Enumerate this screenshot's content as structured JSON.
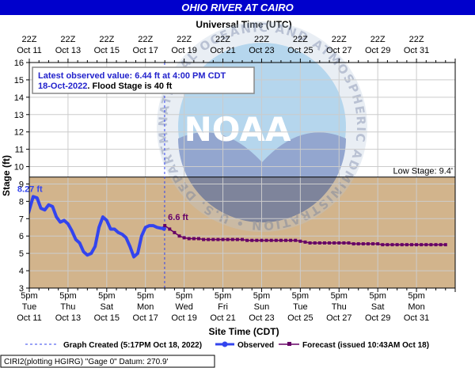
{
  "chart_data": {
    "type": "line",
    "title": "OHIO RIVER AT CAIRO",
    "top_axis_title": "Universal Time (UTC)",
    "xlabel": "Site Time (CDT)",
    "ylabel": "Stage (ft)",
    "ylim": [
      3,
      16
    ],
    "y_ticks": [
      3,
      4,
      5,
      6,
      7,
      8,
      9,
      10,
      11,
      12,
      13,
      14,
      15,
      16
    ],
    "x_range_days": [
      0,
      22
    ],
    "bottom_ticks": [
      {
        "day": 0,
        "l1": "5pm",
        "l2": "Tue",
        "l3": "Oct 11"
      },
      {
        "day": 2,
        "l1": "5pm",
        "l2": "Thu",
        "l3": "Oct 13"
      },
      {
        "day": 4,
        "l1": "5pm",
        "l2": "Sat",
        "l3": "Oct 15"
      },
      {
        "day": 6,
        "l1": "5pm",
        "l2": "Mon",
        "l3": "Oct 17"
      },
      {
        "day": 8,
        "l1": "5pm",
        "l2": "Wed",
        "l3": "Oct 19"
      },
      {
        "day": 10,
        "l1": "5pm",
        "l2": "Fri",
        "l3": "Oct 21"
      },
      {
        "day": 12,
        "l1": "5pm",
        "l2": "Sun",
        "l3": "Oct 23"
      },
      {
        "day": 14,
        "l1": "5pm",
        "l2": "Tue",
        "l3": "Oct 25"
      },
      {
        "day": 16,
        "l1": "5pm",
        "l2": "Thu",
        "l3": "Oct 27"
      },
      {
        "day": 18,
        "l1": "5pm",
        "l2": "Sat",
        "l3": "Oct 29"
      },
      {
        "day": 20,
        "l1": "5pm",
        "l2": "Mon",
        "l3": "Oct 31"
      }
    ],
    "top_ticks": [
      {
        "day": 0,
        "l1": "22Z",
        "l2": "Oct 11"
      },
      {
        "day": 2,
        "l1": "22Z",
        "l2": "Oct 13"
      },
      {
        "day": 4,
        "l1": "22Z",
        "l2": "Oct 15"
      },
      {
        "day": 6,
        "l1": "22Z",
        "l2": "Oct 17"
      },
      {
        "day": 8,
        "l1": "22Z",
        "l2": "Oct 19"
      },
      {
        "day": 10,
        "l1": "22Z",
        "l2": "Oct 21"
      },
      {
        "day": 12,
        "l1": "22Z",
        "l2": "Oct 23"
      },
      {
        "day": 14,
        "l1": "22Z",
        "l2": "Oct 25"
      },
      {
        "day": 16,
        "l1": "22Z",
        "l2": "Oct 27"
      },
      {
        "day": 18,
        "l1": "22Z",
        "l2": "Oct 29"
      },
      {
        "day": 20,
        "l1": "22Z",
        "l2": "Oct 31"
      }
    ],
    "low_stage": {
      "value": 9.4,
      "label": "Low Stage: 9.4'"
    },
    "graph_created_day": 6.99,
    "observed": {
      "name": "Observed",
      "x": [
        -0.05,
        0.2,
        0.4,
        0.6,
        0.8,
        1.0,
        1.2,
        1.4,
        1.6,
        1.8,
        2.0,
        2.2,
        2.4,
        2.6,
        2.8,
        3.0,
        3.2,
        3.4,
        3.6,
        3.8,
        4.0,
        4.2,
        4.4,
        4.6,
        4.8,
        5.0,
        5.2,
        5.4,
        5.6,
        5.8,
        6.0,
        6.2,
        6.4,
        6.6,
        6.8,
        6.95
      ],
      "y": [
        7.3,
        8.27,
        8.2,
        7.6,
        7.5,
        7.8,
        7.7,
        7.1,
        6.8,
        6.9,
        6.7,
        6.3,
        5.8,
        5.6,
        5.1,
        4.9,
        5.0,
        5.4,
        6.5,
        7.1,
        6.9,
        6.4,
        6.4,
        6.2,
        6.1,
        5.9,
        5.4,
        4.8,
        5.0,
        6.0,
        6.5,
        6.6,
        6.6,
        6.5,
        6.45,
        6.44
      ],
      "peak_label": "8.27 ft"
    },
    "forecast": {
      "name": "Forecast (issued 10:43AM Oct 18)",
      "x": [
        7.0,
        7.25,
        7.5,
        7.75,
        8.0,
        8.25,
        8.5,
        8.75,
        9.0,
        9.25,
        9.5,
        9.75,
        10.0,
        10.25,
        10.5,
        10.75,
        11.0,
        11.25,
        11.5,
        11.75,
        12.0,
        12.25,
        12.5,
        12.75,
        13.0,
        13.25,
        13.5,
        13.75,
        14.0,
        14.25,
        14.5,
        14.75,
        15.0,
        15.25,
        15.5,
        15.75,
        16.0,
        16.25,
        16.5,
        16.75,
        17.0,
        17.25,
        17.5,
        17.75,
        18.0,
        18.25,
        18.5,
        18.75,
        19.0,
        19.25,
        19.5,
        19.75,
        20.0,
        20.25,
        20.5,
        20.75,
        21.0,
        21.25,
        21.5
      ],
      "y": [
        6.6,
        6.4,
        6.2,
        6.0,
        5.9,
        5.85,
        5.85,
        5.85,
        5.8,
        5.8,
        5.8,
        5.8,
        5.8,
        5.8,
        5.8,
        5.8,
        5.8,
        5.75,
        5.75,
        5.75,
        5.75,
        5.75,
        5.75,
        5.75,
        5.75,
        5.75,
        5.75,
        5.75,
        5.7,
        5.65,
        5.6,
        5.6,
        5.6,
        5.6,
        5.6,
        5.6,
        5.6,
        5.6,
        5.6,
        5.55,
        5.55,
        5.55,
        5.55,
        5.55,
        5.55,
        5.5,
        5.5,
        5.5,
        5.5,
        5.5,
        5.5,
        5.5,
        5.5,
        5.5,
        5.5,
        5.5,
        5.5,
        5.5,
        5.5
      ],
      "end_label": "6.6 ft"
    },
    "legend": {
      "graph_created": "Graph Created (5:17PM Oct 18, 2022)",
      "observed": "Observed",
      "forecast": "Forecast (issued 10:43AM Oct 18)"
    },
    "info_box": {
      "line1": "Latest observed value: 6.44 ft at 4:00 PM CDT",
      "line2_date": "18-Oct-2022",
      "line2_rest": ". Flood Stage is 40 ft"
    },
    "footer": "CIRI2(plotting HGIRG) \"Gage 0\" Datum: 270.9'",
    "watermark_text": "NOAA",
    "watermark_ring": "NATIONAL OCEANIC AND ATMOSPHERIC ADMINISTRATION • U.S. DEPARTMENT OF COMMERCE",
    "colors": {
      "title_bar": "#0000cc",
      "observed": "#3344ee",
      "forecast": "#660066",
      "below_low_stage": "#d2b48c",
      "info_text": "#2222cc",
      "grid": "#cccccc"
    }
  }
}
